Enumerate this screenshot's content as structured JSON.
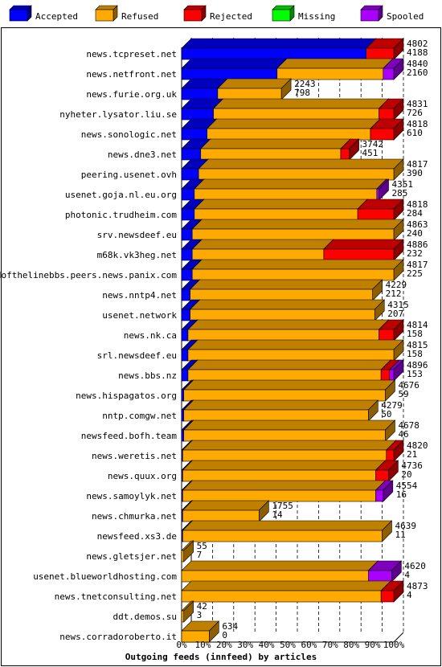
{
  "chart_data": {
    "type": "bar",
    "orientation": "horizontal",
    "stacked": true,
    "xlabel": "Outgoing feeds (innfeed) by articles",
    "xlim": [
      0,
      100
    ],
    "x_ticks": [
      "0%",
      "10%",
      "20%",
      "30%",
      "40%",
      "50%",
      "60%",
      "70%",
      "80%",
      "90%",
      "100%"
    ],
    "grid": true,
    "legend_position": "top",
    "series_colors": {
      "Accepted": "#0000ff",
      "Refused": "#ffaa00",
      "Rejected": "#ff0000",
      "Missing": "#00ff00",
      "Spooled": "#aa00ff"
    },
    "legend": [
      {
        "name": "Accepted",
        "color": "#0000ff"
      },
      {
        "name": "Refused",
        "color": "#ffaa00"
      },
      {
        "name": "Rejected",
        "color": "#ff0000"
      },
      {
        "name": "Missing",
        "color": "#00ff00"
      },
      {
        "name": "Spooled",
        "color": "#aa00ff"
      }
    ],
    "rows": [
      {
        "name": "news.tcpreset.net",
        "total": "4802",
        "accepted_count": "4188",
        "accepted": 87,
        "refused": 0,
        "rejected": 13,
        "missing": 0,
        "spooled": 0
      },
      {
        "name": "news.netfront.net",
        "total": "4840",
        "accepted_count": "2160",
        "accepted": 45,
        "refused": 50,
        "rejected": 0,
        "missing": 0,
        "spooled": 5
      },
      {
        "name": "news.furie.org.uk",
        "total": "2243",
        "accepted_count": "798",
        "accepted": 17,
        "refused": 30,
        "rejected": 0,
        "missing": 0,
        "spooled": 0
      },
      {
        "name": "nyheter.lysator.liu.se",
        "total": "4831",
        "accepted_count": "726",
        "accepted": 15,
        "refused": 78,
        "rejected": 7,
        "missing": 0,
        "spooled": 0
      },
      {
        "name": "news.sonologic.net",
        "total": "4818",
        "accepted_count": "610",
        "accepted": 12,
        "refused": 77,
        "rejected": 11,
        "missing": 0,
        "spooled": 0
      },
      {
        "name": "news.dne3.net",
        "total": "3742",
        "accepted_count": "451",
        "accepted": 9,
        "refused": 66,
        "rejected": 4,
        "missing": 0,
        "spooled": 0
      },
      {
        "name": "peering.usenet.ovh",
        "total": "4817",
        "accepted_count": "390",
        "accepted": 8,
        "refused": 92,
        "rejected": 0,
        "missing": 0,
        "spooled": 0
      },
      {
        "name": "usenet.goja.nl.eu.org",
        "total": "4351",
        "accepted_count": "285",
        "accepted": 6,
        "refused": 86,
        "rejected": 0,
        "missing": 0,
        "spooled": 1
      },
      {
        "name": "photonic.trudheim.com",
        "total": "4818",
        "accepted_count": "284",
        "accepted": 6,
        "refused": 77,
        "rejected": 17,
        "missing": 0,
        "spooled": 0
      },
      {
        "name": "srv.newsdeef.eu",
        "total": "4863",
        "accepted_count": "240",
        "accepted": 5,
        "refused": 95,
        "rejected": 0,
        "missing": 0,
        "spooled": 0
      },
      {
        "name": "m68k.vk3heg.net",
        "total": "4886",
        "accepted_count": "232",
        "accepted": 5,
        "refused": 62,
        "rejected": 33,
        "missing": 0,
        "spooled": 0
      },
      {
        "name": "endofthelinebbs.peers.news.panix.com",
        "total": "4817",
        "accepted_count": "225",
        "accepted": 5,
        "refused": 95,
        "rejected": 0,
        "missing": 0,
        "spooled": 0
      },
      {
        "name": "news.nntp4.net",
        "total": "4229",
        "accepted_count": "212",
        "accepted": 4,
        "refused": 86,
        "rejected": 0,
        "missing": 0,
        "spooled": 0
      },
      {
        "name": "usenet.network",
        "total": "4315",
        "accepted_count": "207",
        "accepted": 4,
        "refused": 87,
        "rejected": 0,
        "missing": 0,
        "spooled": 0
      },
      {
        "name": "news.nk.ca",
        "total": "4814",
        "accepted_count": "158",
        "accepted": 3,
        "refused": 90,
        "rejected": 7,
        "missing": 0,
        "spooled": 0
      },
      {
        "name": "srl.newsdeef.eu",
        "total": "4815",
        "accepted_count": "158",
        "accepted": 3,
        "refused": 97,
        "rejected": 0,
        "missing": 0,
        "spooled": 0
      },
      {
        "name": "news.bbs.nz",
        "total": "4896",
        "accepted_count": "153",
        "accepted": 3,
        "refused": 91,
        "rejected": 4,
        "missing": 0,
        "spooled": 2
      },
      {
        "name": "news.hispagatos.org",
        "total": "4676",
        "accepted_count": "59",
        "accepted": 1,
        "refused": 95,
        "rejected": 0,
        "missing": 0,
        "spooled": 0
      },
      {
        "name": "nntp.comgw.net",
        "total": "4279",
        "accepted_count": "50",
        "accepted": 1,
        "refused": 87,
        "rejected": 0,
        "missing": 0,
        "spooled": 0
      },
      {
        "name": "newsfeed.bofh.team",
        "total": "4678",
        "accepted_count": "46",
        "accepted": 1,
        "refused": 95,
        "rejected": 0,
        "missing": 0,
        "spooled": 0
      },
      {
        "name": "news.weretis.net",
        "total": "4820",
        "accepted_count": "21",
        "accepted": 0.5,
        "refused": 96,
        "rejected": 3.5,
        "missing": 0,
        "spooled": 0
      },
      {
        "name": "news.quux.org",
        "total": "4736",
        "accepted_count": "20",
        "accepted": 0.5,
        "refused": 91,
        "rejected": 6,
        "missing": 0,
        "spooled": 0
      },
      {
        "name": "news.samoylyk.net",
        "total": "4554",
        "accepted_count": "16",
        "accepted": 0.5,
        "refused": 91,
        "rejected": 0,
        "missing": 0,
        "spooled": 3.5
      },
      {
        "name": "news.chmurka.net",
        "total": "1755",
        "accepted_count": "14",
        "accepted": 0.5,
        "refused": 36,
        "rejected": 0,
        "missing": 0,
        "spooled": 0
      },
      {
        "name": "newsfeed.xs3.de",
        "total": "4639",
        "accepted_count": "11",
        "accepted": 0.5,
        "refused": 94,
        "rejected": 0,
        "missing": 0,
        "spooled": 0
      },
      {
        "name": "news.gletsjer.net",
        "total": "55",
        "accepted_count": "7",
        "accepted": 0,
        "refused": 1,
        "rejected": 0,
        "missing": 0,
        "spooled": 0
      },
      {
        "name": "usenet.blueworldhosting.com",
        "total": "4620",
        "accepted_count": "4",
        "accepted": 0,
        "refused": 88,
        "rejected": 0,
        "missing": 0,
        "spooled": 11
      },
      {
        "name": "news.tnetconsulting.net",
        "total": "4873",
        "accepted_count": "4",
        "accepted": 0,
        "refused": 94,
        "rejected": 6,
        "missing": 0,
        "spooled": 0
      },
      {
        "name": "ddt.demos.su",
        "total": "42",
        "accepted_count": "3",
        "accepted": 0,
        "refused": 1,
        "rejected": 0,
        "missing": 0,
        "spooled": 0
      },
      {
        "name": "news.corradoroberto.it",
        "total": "634",
        "accepted_count": "0",
        "accepted": 0,
        "refused": 13,
        "rejected": 0,
        "missing": 0,
        "spooled": 0
      }
    ]
  }
}
